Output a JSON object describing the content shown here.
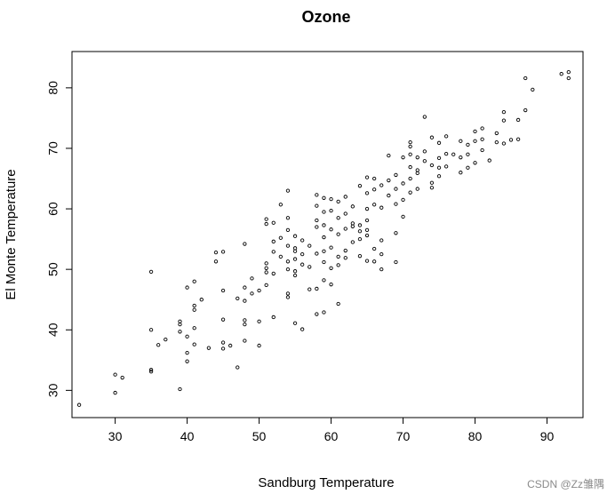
{
  "chart_data": {
    "type": "scatter",
    "title": "Ozone",
    "xlabel": "Sandburg Temperature",
    "ylabel": "El Monte Temperature",
    "xlim": [
      24,
      95
    ],
    "ylim": [
      25.5,
      86
    ],
    "xticks": [
      30,
      40,
      50,
      60,
      70,
      80,
      90
    ],
    "yticks": [
      30,
      40,
      50,
      60,
      70,
      80
    ],
    "grid": false,
    "point_style": "open-circle",
    "points": [
      [
        25,
        27.6
      ],
      [
        30,
        29.6
      ],
      [
        30,
        32.6
      ],
      [
        31,
        32.1
      ],
      [
        35,
        33.1
      ],
      [
        35,
        33.4
      ],
      [
        35,
        40.0
      ],
      [
        35,
        49.6
      ],
      [
        36,
        37.5
      ],
      [
        37,
        38.4
      ],
      [
        39,
        30.2
      ],
      [
        39,
        39.7
      ],
      [
        39,
        40.9
      ],
      [
        39,
        41.4
      ],
      [
        40,
        34.8
      ],
      [
        40,
        36.2
      ],
      [
        40,
        38.9
      ],
      [
        40,
        47.0
      ],
      [
        41,
        37.6
      ],
      [
        41,
        40.3
      ],
      [
        41,
        43.3
      ],
      [
        41,
        44.0
      ],
      [
        41,
        48.0
      ],
      [
        42,
        45.0
      ],
      [
        43,
        37.0
      ],
      [
        44,
        51.3
      ],
      [
        44,
        52.8
      ],
      [
        45,
        36.9
      ],
      [
        45,
        37.9
      ],
      [
        45,
        41.7
      ],
      [
        45,
        46.5
      ],
      [
        45,
        52.9
      ],
      [
        46,
        37.4
      ],
      [
        47,
        33.8
      ],
      [
        47,
        45.2
      ],
      [
        48,
        38.2
      ],
      [
        48,
        40.9
      ],
      [
        48,
        41.6
      ],
      [
        48,
        44.8
      ],
      [
        48,
        47.0
      ],
      [
        48,
        54.2
      ],
      [
        49,
        46.0
      ],
      [
        49,
        48.5
      ],
      [
        50,
        37.4
      ],
      [
        50,
        41.4
      ],
      [
        50,
        46.5
      ],
      [
        51,
        47.4
      ],
      [
        51,
        49.5
      ],
      [
        51,
        50.2
      ],
      [
        51,
        51.0
      ],
      [
        51,
        57.5
      ],
      [
        51,
        58.3
      ],
      [
        52,
        42.1
      ],
      [
        52,
        49.3
      ],
      [
        52,
        52.9
      ],
      [
        52,
        54.6
      ],
      [
        52,
        57.7
      ],
      [
        53,
        52.1
      ],
      [
        53,
        55.2
      ],
      [
        53,
        60.7
      ],
      [
        54,
        45.4
      ],
      [
        54,
        46.0
      ],
      [
        54,
        50.0
      ],
      [
        54,
        51.3
      ],
      [
        54,
        53.9
      ],
      [
        54,
        56.5
      ],
      [
        54,
        58.5
      ],
      [
        54,
        63.0
      ],
      [
        55,
        41.1
      ],
      [
        55,
        49.0
      ],
      [
        55,
        49.7
      ],
      [
        55,
        51.7
      ],
      [
        55,
        53.0
      ],
      [
        55,
        53.5
      ],
      [
        55,
        55.5
      ],
      [
        56,
        40.1
      ],
      [
        56,
        50.8
      ],
      [
        56,
        52.5
      ],
      [
        56,
        54.8
      ],
      [
        57,
        46.7
      ],
      [
        57,
        50.4
      ],
      [
        57,
        53.9
      ],
      [
        58,
        42.6
      ],
      [
        58,
        46.8
      ],
      [
        58,
        52.6
      ],
      [
        58,
        57.0
      ],
      [
        58,
        58.1
      ],
      [
        58,
        60.5
      ],
      [
        58,
        62.3
      ],
      [
        59,
        42.9
      ],
      [
        59,
        48.2
      ],
      [
        59,
        51.2
      ],
      [
        59,
        53.0
      ],
      [
        59,
        55.3
      ],
      [
        59,
        57.3
      ],
      [
        59,
        59.5
      ],
      [
        59,
        61.8
      ],
      [
        60,
        47.5
      ],
      [
        60,
        50.2
      ],
      [
        60,
        53.6
      ],
      [
        60,
        56.6
      ],
      [
        60,
        59.7
      ],
      [
        60,
        61.6
      ],
      [
        61,
        44.3
      ],
      [
        61,
        50.7
      ],
      [
        61,
        52.1
      ],
      [
        61,
        55.8
      ],
      [
        61,
        58.5
      ],
      [
        61,
        61.2
      ],
      [
        62,
        51.9
      ],
      [
        62,
        53.1
      ],
      [
        62,
        56.7
      ],
      [
        62,
        59.2
      ],
      [
        62,
        62.0
      ],
      [
        63,
        54.5
      ],
      [
        63,
        57.1
      ],
      [
        63,
        57.6
      ],
      [
        63,
        60.4
      ],
      [
        64,
        52.2
      ],
      [
        64,
        55.0
      ],
      [
        64,
        56.3
      ],
      [
        64,
        57.3
      ],
      [
        64,
        63.8
      ],
      [
        65,
        51.4
      ],
      [
        65,
        55.6
      ],
      [
        65,
        56.5
      ],
      [
        65,
        58.1
      ],
      [
        65,
        60.0
      ],
      [
        65,
        62.6
      ],
      [
        65,
        65.2
      ],
      [
        66,
        51.3
      ],
      [
        66,
        53.4
      ],
      [
        66,
        60.7
      ],
      [
        66,
        63.2
      ],
      [
        66,
        65.0
      ],
      [
        67,
        50.0
      ],
      [
        67,
        52.5
      ],
      [
        67,
        54.8
      ],
      [
        67,
        60.2
      ],
      [
        67,
        63.9
      ],
      [
        68,
        62.2
      ],
      [
        68,
        64.7
      ],
      [
        68,
        68.8
      ],
      [
        69,
        51.2
      ],
      [
        69,
        56.0
      ],
      [
        69,
        60.8
      ],
      [
        69,
        63.3
      ],
      [
        69,
        65.6
      ],
      [
        70,
        58.7
      ],
      [
        70,
        61.5
      ],
      [
        70,
        64.2
      ],
      [
        70,
        68.5
      ],
      [
        71,
        62.7
      ],
      [
        71,
        65.0
      ],
      [
        71,
        66.9
      ],
      [
        71,
        69.0
      ],
      [
        71,
        70.3
      ],
      [
        71,
        71.0
      ],
      [
        72,
        63.3
      ],
      [
        72,
        65.9
      ],
      [
        72,
        66.4
      ],
      [
        72,
        68.5
      ],
      [
        73,
        67.9
      ],
      [
        73,
        69.5
      ],
      [
        73,
        75.2
      ],
      [
        74,
        63.5
      ],
      [
        74,
        64.3
      ],
      [
        74,
        67.2
      ],
      [
        74,
        71.8
      ],
      [
        75,
        65.4
      ],
      [
        75,
        66.8
      ],
      [
        75,
        68.4
      ],
      [
        75,
        70.9
      ],
      [
        76,
        67.0
      ],
      [
        76,
        69.1
      ],
      [
        76,
        72.0
      ],
      [
        77,
        69.0
      ],
      [
        78,
        66.0
      ],
      [
        78,
        68.5
      ],
      [
        78,
        71.2
      ],
      [
        79,
        66.8
      ],
      [
        79,
        69.0
      ],
      [
        79,
        70.6
      ],
      [
        80,
        67.6
      ],
      [
        80,
        71.2
      ],
      [
        80,
        72.8
      ],
      [
        81,
        69.7
      ],
      [
        81,
        71.5
      ],
      [
        81,
        73.3
      ],
      [
        82,
        68.0
      ],
      [
        83,
        71.0
      ],
      [
        83,
        72.5
      ],
      [
        84,
        70.8
      ],
      [
        84,
        74.6
      ],
      [
        84,
        76.0
      ],
      [
        85,
        71.4
      ],
      [
        86,
        71.5
      ],
      [
        86,
        74.7
      ],
      [
        87,
        76.3
      ],
      [
        87,
        81.6
      ],
      [
        88,
        79.7
      ],
      [
        92,
        82.3
      ],
      [
        93,
        81.6
      ],
      [
        93,
        82.6
      ]
    ]
  },
  "watermark": {
    "text": "CSDN @Zz雏隅"
  }
}
